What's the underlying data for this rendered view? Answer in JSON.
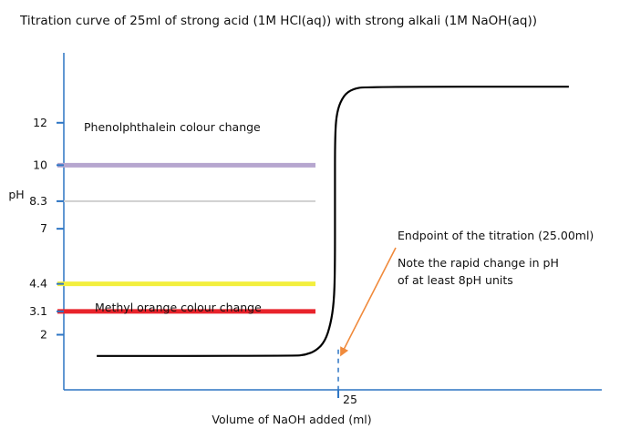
{
  "chart_data": {
    "type": "line",
    "title": "Titration curve of 25ml of strong acid (1M HCl(aq)) with strong alkali (1M NaOH(aq))",
    "xlabel": "Volume of NaOH added (ml)",
    "ylabel": "pH",
    "xlim": [
      0,
      49
    ],
    "ylim": [
      -0.6,
      15.3
    ],
    "x_ticks": [
      {
        "value": 25,
        "label": "25"
      }
    ],
    "y_ticks": [
      {
        "value": 2,
        "label": "2"
      },
      {
        "value": 7,
        "label": "7"
      },
      {
        "value": 12,
        "label": "12"
      }
    ],
    "grid": false,
    "legend": "none",
    "series": [
      {
        "color": "#000000",
        "points": [
          [
            3,
            1.0
          ],
          [
            21,
            1.0
          ],
          [
            22,
            1.05
          ],
          [
            23,
            1.25
          ],
          [
            23.8,
            1.7
          ],
          [
            24.3,
            2.5
          ],
          [
            24.6,
            3.5
          ],
          [
            24.7,
            5.0
          ],
          [
            24.7,
            8.5
          ],
          [
            24.7,
            11.5
          ],
          [
            24.9,
            12.6
          ],
          [
            25.5,
            13.3
          ],
          [
            26.3,
            13.6
          ],
          [
            27.5,
            13.7
          ],
          [
            46,
            13.7
          ]
        ]
      }
    ],
    "reference_lines": [
      {
        "y": 10,
        "label": "10",
        "color": "#b6a6cf",
        "note": "Phenolphthalein colour change"
      },
      {
        "y": 8.3,
        "label": "8.3",
        "color": "#cfcfcf",
        "note": ""
      },
      {
        "y": 4.4,
        "label": "4.4",
        "color": "#f3ef3e",
        "note": ""
      },
      {
        "y": 3.1,
        "label": "3.1",
        "color": "#e8232b",
        "note": "Methyl orange colour change"
      }
    ],
    "endpoint": {
      "x": 25,
      "line_color": "#2d75c4",
      "arrow_color": "#f08a3c",
      "label": "Endpoint of the titration (25.00ml)",
      "note_lines": [
        "Note the rapid change in pH",
        "of at least 8pH units"
      ]
    }
  }
}
